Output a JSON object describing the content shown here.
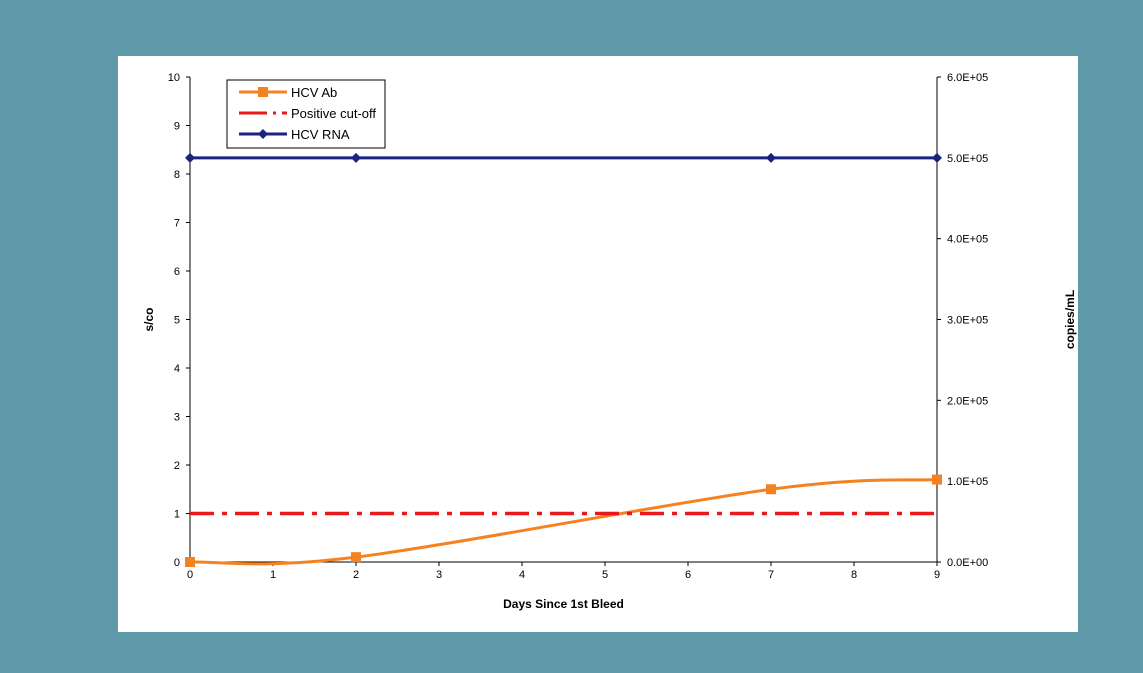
{
  "chart_data": {
    "type": "line",
    "xlabel": "Days Since 1st Bleed",
    "ylabel": "s/co",
    "y2label": "copies/mL",
    "xlim": [
      0,
      9
    ],
    "ylim": [
      0,
      10
    ],
    "y2lim": [
      0,
      600000
    ],
    "xticks": [
      "0",
      "1",
      "2",
      "3",
      "4",
      "5",
      "6",
      "7",
      "8",
      "9"
    ],
    "yticks": [
      "0",
      "1",
      "2",
      "3",
      "4",
      "5",
      "6",
      "7",
      "8",
      "9",
      "10"
    ],
    "y2ticks": [
      "0.0E+00",
      "1.0E+05",
      "2.0E+05",
      "3.0E+05",
      "4.0E+05",
      "5.0E+05",
      "6.0E+05"
    ],
    "grid": false,
    "legend_position": "top-left",
    "series": [
      {
        "name": "HCV Ab",
        "axis": "left",
        "color": "#f58220",
        "marker": "square",
        "smooth": true,
        "x": [
          0,
          2,
          7,
          9
        ],
        "y": [
          0.0,
          0.1,
          1.5,
          1.7
        ]
      },
      {
        "name": "Positive cut-off",
        "axis": "left",
        "color": "#e8191b",
        "style": "dash-dot",
        "marker": "none",
        "x": [
          0,
          9
        ],
        "y": [
          1,
          1
        ]
      },
      {
        "name": "HCV RNA",
        "axis": "right",
        "color": "#1a237e",
        "marker": "diamond",
        "x": [
          0,
          2,
          7,
          9
        ],
        "y": [
          500000,
          500000,
          500000,
          500000
        ]
      }
    ]
  }
}
